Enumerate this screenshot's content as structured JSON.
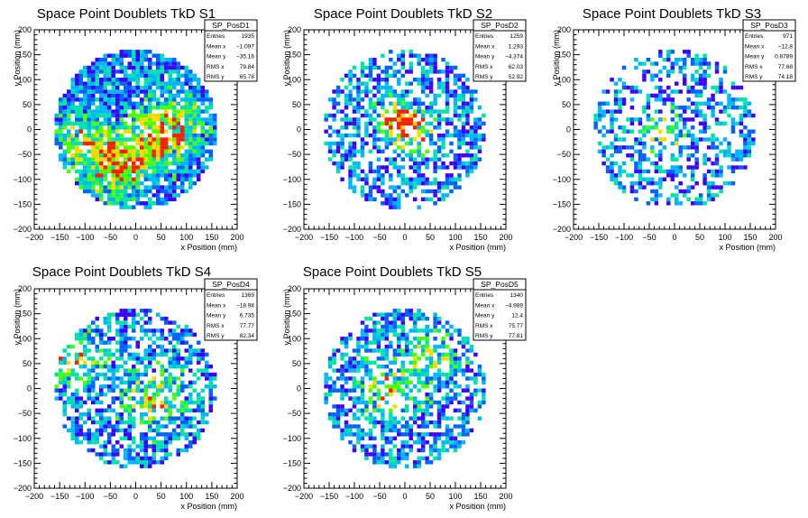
{
  "chart_data": [
    {
      "type": "heatmap",
      "title": "Space Point Doublets TkD S1",
      "xlabel": "x Position (mm)",
      "ylabel": "y Position (mm)",
      "xlim": [
        -200,
        200
      ],
      "ylim": [
        -200,
        200
      ],
      "xticks": [
        -200,
        -150,
        -100,
        -50,
        0,
        50,
        100,
        150,
        200
      ],
      "yticks": [
        -200,
        -150,
        -100,
        -50,
        0,
        50,
        100,
        150,
        200
      ],
      "stats": {
        "name": "SP_PosD1",
        "rows": [
          {
            "label": "Entries",
            "value": "1935"
          },
          {
            "label": "Mean x",
            "value": "−1.097"
          },
          {
            "label": "Mean y",
            "value": "−35.16"
          },
          {
            "label": "RMS x",
            "value": "79.84"
          },
          {
            "label": "RMS y",
            "value": "65.78"
          }
        ]
      },
      "mean_x": -1.097,
      "mean_y": -35.16,
      "rms_x": 79.84,
      "rms_y": 65.78,
      "entries": 1935,
      "palette": [
        "#3d00ff",
        "#0062ff",
        "#00b6ff",
        "#00e3a8",
        "#4dff00",
        "#ffd800",
        "#ff1f00"
      ],
      "hotspots": [
        {
          "x": -40,
          "y": -70,
          "weight": 0.55,
          "spread": 40
        },
        {
          "x": 40,
          "y": -25,
          "weight": 0.45,
          "spread": 40
        },
        {
          "x": 85,
          "y": 20,
          "weight": 0.35,
          "spread": 35
        },
        {
          "x": -110,
          "y": -20,
          "weight": 0.3,
          "spread": 35
        }
      ]
    },
    {
      "type": "heatmap",
      "title": "Space Point Doublets TkD S2",
      "xlabel": "x Position (mm)",
      "ylabel": "y Position (mm)",
      "xlim": [
        -200,
        200
      ],
      "ylim": [
        -200,
        200
      ],
      "xticks": [
        -200,
        -150,
        -100,
        -50,
        0,
        50,
        100,
        150,
        200
      ],
      "yticks": [
        -200,
        -150,
        -100,
        -50,
        0,
        50,
        100,
        150,
        200
      ],
      "stats": {
        "name": "SP_PosD2",
        "rows": [
          {
            "label": "Entries",
            "value": "1259"
          },
          {
            "label": "Mean x",
            "value": "1.293"
          },
          {
            "label": "Mean y",
            "value": "−4.374"
          },
          {
            "label": "RMS x",
            "value": "62.03"
          },
          {
            "label": "RMS y",
            "value": "52.92"
          }
        ]
      },
      "mean_x": 1.293,
      "mean_y": -4.374,
      "rms_x": 62.03,
      "rms_y": 52.92,
      "entries": 1259,
      "palette": [
        "#3d00ff",
        "#0062ff",
        "#00b6ff",
        "#00e3a8",
        "#4dff00",
        "#ffd800",
        "#ff1f00"
      ],
      "hotspots": [
        {
          "x": -15,
          "y": 20,
          "weight": 0.6,
          "spread": 25
        },
        {
          "x": 20,
          "y": -5,
          "weight": 0.5,
          "spread": 25
        }
      ]
    },
    {
      "type": "heatmap",
      "title": "Space Point Doublets TkD S3",
      "xlabel": "x Position (mm)",
      "ylabel": "y Position (mm)",
      "xlim": [
        -200,
        200
      ],
      "ylim": [
        -200,
        200
      ],
      "xticks": [
        -200,
        -150,
        -100,
        -50,
        0,
        50,
        100,
        150,
        200
      ],
      "yticks": [
        -200,
        -150,
        -100,
        -50,
        0,
        50,
        100,
        150,
        200
      ],
      "stats": {
        "name": "SP_PosD3",
        "rows": [
          {
            "label": "Entries",
            "value": "971"
          },
          {
            "label": "Mean x",
            "value": "−12.8"
          },
          {
            "label": "Mean y",
            "value": "0.8789"
          },
          {
            "label": "RMS x",
            "value": "77.68"
          },
          {
            "label": "RMS y",
            "value": "74.18"
          }
        ]
      },
      "mean_x": -12.8,
      "mean_y": 0.8789,
      "rms_x": 77.68,
      "rms_y": 74.18,
      "entries": 971,
      "palette": [
        "#3d00ff",
        "#0062ff",
        "#00b6ff",
        "#00e3a8",
        "#4dff00",
        "#ffd800",
        "#ff1f00"
      ],
      "hotspots": [
        {
          "x": -20,
          "y": -10,
          "weight": 0.45,
          "spread": 25
        }
      ]
    },
    {
      "type": "heatmap",
      "title": "Space Point Doublets TkD S4",
      "xlabel": "x Position (mm)",
      "ylabel": "y Position (mm)",
      "xlim": [
        -200,
        200
      ],
      "ylim": [
        -200,
        200
      ],
      "xticks": [
        -200,
        -150,
        -100,
        -50,
        0,
        50,
        100,
        150,
        200
      ],
      "yticks": [
        -200,
        -150,
        -100,
        -50,
        0,
        50,
        100,
        150,
        200
      ],
      "stats": {
        "name": "SP_PosD4",
        "rows": [
          {
            "label": "Entries",
            "value": "1369"
          },
          {
            "label": "Mean x",
            "value": "−18.98"
          },
          {
            "label": "Mean y",
            "value": "6.735"
          },
          {
            "label": "RMS x",
            "value": "77.77"
          },
          {
            "label": "RMS y",
            "value": "82.34"
          }
        ]
      },
      "mean_x": -18.98,
      "mean_y": 6.735,
      "rms_x": 77.77,
      "rms_y": 82.34,
      "entries": 1369,
      "palette": [
        "#3d00ff",
        "#0062ff",
        "#00b6ff",
        "#00e3a8",
        "#4dff00",
        "#ffd800",
        "#ff1f00"
      ],
      "hotspots": [
        {
          "x": -120,
          "y": 60,
          "weight": 0.4,
          "spread": 35
        },
        {
          "x": 40,
          "y": -20,
          "weight": 0.35,
          "spread": 40
        }
      ]
    },
    {
      "type": "heatmap",
      "title": "Space Point Doublets TkD S5",
      "xlabel": "x Position (mm)",
      "ylabel": "y Position (mm)",
      "xlim": [
        -200,
        200
      ],
      "ylim": [
        -200,
        200
      ],
      "xticks": [
        -200,
        -150,
        -100,
        -50,
        0,
        50,
        100,
        150,
        200
      ],
      "yticks": [
        -200,
        -150,
        -100,
        -50,
        0,
        50,
        100,
        150,
        200
      ],
      "stats": {
        "name": "SP_PosD5",
        "rows": [
          {
            "label": "Entries",
            "value": "1340"
          },
          {
            "label": "Mean x",
            "value": "−4.989"
          },
          {
            "label": "Mean y",
            "value": "12.4"
          },
          {
            "label": "RMS x",
            "value": "75.77"
          },
          {
            "label": "RMS y",
            "value": "77.81"
          }
        ]
      },
      "mean_x": -4.989,
      "mean_y": 12.4,
      "rms_x": 75.77,
      "rms_y": 77.81,
      "entries": 1340,
      "palette": [
        "#3d00ff",
        "#0062ff",
        "#00b6ff",
        "#00e3a8",
        "#4dff00",
        "#ffd800",
        "#ff1f00"
      ],
      "hotspots": [
        {
          "x": -40,
          "y": 0,
          "weight": 0.35,
          "spread": 40
        },
        {
          "x": 60,
          "y": 60,
          "weight": 0.3,
          "spread": 35
        }
      ]
    }
  ]
}
